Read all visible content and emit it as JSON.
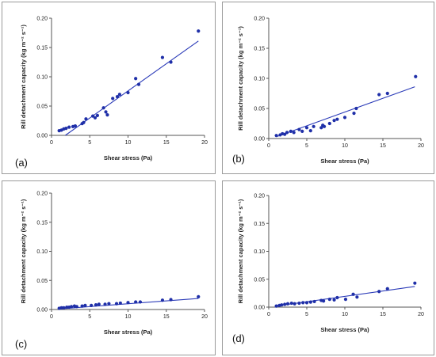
{
  "chart_data": [
    {
      "type": "scatter",
      "panel_label": "(a)",
      "xlabel": "Shear stress (Pa)",
      "ylabel": "Rill detachment capacity (kg m⁻² s⁻¹)",
      "xlim": [
        0,
        20
      ],
      "ylim": [
        0,
        0.2
      ],
      "xticks": [
        "0",
        "5",
        "10",
        "15",
        "20"
      ],
      "yticks": [
        "0.00",
        "0.05",
        "0.10",
        "0.15",
        "0.20"
      ],
      "points": [
        [
          1.0,
          0.008
        ],
        [
          1.3,
          0.009
        ],
        [
          1.6,
          0.011
        ],
        [
          1.9,
          0.012
        ],
        [
          2.3,
          0.014
        ],
        [
          2.8,
          0.015
        ],
        [
          3.1,
          0.016
        ],
        [
          4.0,
          0.02
        ],
        [
          4.2,
          0.022
        ],
        [
          4.5,
          0.028
        ],
        [
          5.4,
          0.033
        ],
        [
          5.7,
          0.03
        ],
        [
          6.0,
          0.034
        ],
        [
          6.8,
          0.047
        ],
        [
          7.1,
          0.04
        ],
        [
          7.3,
          0.035
        ],
        [
          8.0,
          0.063
        ],
        [
          8.6,
          0.066
        ],
        [
          8.9,
          0.07
        ],
        [
          10.0,
          0.073
        ],
        [
          11.0,
          0.097
        ],
        [
          11.4,
          0.087
        ],
        [
          14.5,
          0.133
        ],
        [
          15.6,
          0.125
        ],
        [
          19.2,
          0.178
        ]
      ],
      "trendline": [
        [
          1.8,
          0.0
        ],
        [
          19.2,
          0.161
        ]
      ]
    },
    {
      "type": "scatter",
      "panel_label": "(b)",
      "xlabel": "Shear stress (Pa)",
      "ylabel": "Rill detachment capacity (kg m⁻² s⁻¹)",
      "xlim": [
        0,
        20
      ],
      "ylim": [
        0,
        0.2
      ],
      "xticks": [
        "0",
        "5",
        "10",
        "15",
        "20"
      ],
      "yticks": [
        "0.00",
        "0.05",
        "0.10",
        "0.15",
        "0.20"
      ],
      "points": [
        [
          1.0,
          0.005
        ],
        [
          1.5,
          0.006
        ],
        [
          1.8,
          0.008
        ],
        [
          2.1,
          0.007
        ],
        [
          2.4,
          0.01
        ],
        [
          2.9,
          0.012
        ],
        [
          3.3,
          0.01
        ],
        [
          4.0,
          0.015
        ],
        [
          4.4,
          0.012
        ],
        [
          5.0,
          0.018
        ],
        [
          5.5,
          0.013
        ],
        [
          5.9,
          0.02
        ],
        [
          6.9,
          0.018
        ],
        [
          7.1,
          0.022
        ],
        [
          7.3,
          0.02
        ],
        [
          8.0,
          0.025
        ],
        [
          8.6,
          0.03
        ],
        [
          9.0,
          0.032
        ],
        [
          10.0,
          0.035
        ],
        [
          11.2,
          0.042
        ],
        [
          11.5,
          0.05
        ],
        [
          14.5,
          0.073
        ],
        [
          15.6,
          0.075
        ],
        [
          19.3,
          0.103
        ]
      ],
      "trendline": [
        [
          1.0,
          0.003
        ],
        [
          19.2,
          0.086
        ]
      ]
    },
    {
      "type": "scatter",
      "panel_label": "(c)",
      "xlabel": "Shear stress (Pa)",
      "ylabel": "Rill detachment capacity (kg m⁻² s⁻¹)",
      "xlim": [
        0,
        20
      ],
      "ylim": [
        0,
        0.2
      ],
      "xticks": [
        "0",
        "5",
        "10",
        "15",
        "20"
      ],
      "yticks": [
        "0.00",
        "0.05",
        "0.10",
        "0.15",
        "0.20"
      ],
      "points": [
        [
          1.0,
          0.002
        ],
        [
          1.3,
          0.003
        ],
        [
          1.6,
          0.003
        ],
        [
          2.0,
          0.004
        ],
        [
          2.3,
          0.004
        ],
        [
          2.6,
          0.005
        ],
        [
          3.0,
          0.006
        ],
        [
          3.3,
          0.005
        ],
        [
          4.0,
          0.006
        ],
        [
          4.4,
          0.007
        ],
        [
          5.2,
          0.007
        ],
        [
          5.8,
          0.008
        ],
        [
          6.2,
          0.009
        ],
        [
          7.0,
          0.009
        ],
        [
          7.5,
          0.01
        ],
        [
          8.5,
          0.01
        ],
        [
          9.0,
          0.011
        ],
        [
          10.0,
          0.012
        ],
        [
          11.0,
          0.013
        ],
        [
          11.6,
          0.013
        ],
        [
          14.5,
          0.016
        ],
        [
          15.6,
          0.017
        ],
        [
          19.2,
          0.022
        ]
      ],
      "trendline": [
        [
          1.0,
          0.001
        ],
        [
          19.2,
          0.019
        ]
      ]
    },
    {
      "type": "scatter",
      "panel_label": "(d)",
      "xlabel": "Shear stress (Pa)",
      "ylabel": "Rill detachment capacity (kg m⁻² s⁻¹)",
      "xlim": [
        0,
        20
      ],
      "ylim": [
        0,
        0.2
      ],
      "xticks": [
        "0",
        "5",
        "10",
        "15",
        "20"
      ],
      "yticks": [
        "0.00",
        "0.05",
        "0.10",
        "0.15",
        "0.20"
      ],
      "points": [
        [
          1.0,
          0.002
        ],
        [
          1.4,
          0.003
        ],
        [
          1.7,
          0.004
        ],
        [
          2.1,
          0.005
        ],
        [
          2.5,
          0.006
        ],
        [
          3.0,
          0.007
        ],
        [
          3.4,
          0.006
        ],
        [
          4.0,
          0.007
        ],
        [
          4.5,
          0.008
        ],
        [
          5.0,
          0.008
        ],
        [
          5.5,
          0.009
        ],
        [
          6.0,
          0.01
        ],
        [
          6.9,
          0.012
        ],
        [
          7.2,
          0.011
        ],
        [
          8.0,
          0.014
        ],
        [
          8.6,
          0.013
        ],
        [
          9.0,
          0.017
        ],
        [
          10.1,
          0.014
        ],
        [
          11.1,
          0.023
        ],
        [
          11.6,
          0.018
        ],
        [
          14.5,
          0.028
        ],
        [
          15.6,
          0.033
        ],
        [
          19.2,
          0.043
        ]
      ],
      "trendline": [
        [
          1.0,
          0.002
        ],
        [
          19.2,
          0.037
        ]
      ]
    }
  ],
  "colors": {
    "marker": "#1f2fa8",
    "trendline": "#2a3ab8",
    "axis": "#555555"
  }
}
